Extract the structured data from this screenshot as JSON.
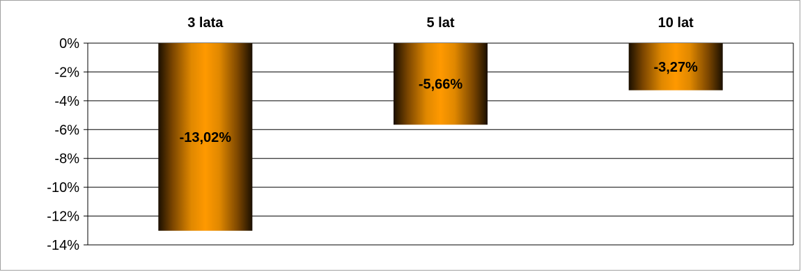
{
  "chart_data": {
    "type": "bar",
    "categories": [
      "3 lata",
      "5 lat",
      "10 lat"
    ],
    "values": [
      -13.02,
      -5.66,
      -3.27
    ],
    "data_labels": [
      "-13,02%",
      "-5,66%",
      "-3,27%"
    ],
    "ylim": [
      -14,
      0
    ],
    "y_ticks": [
      0,
      -2,
      -4,
      -6,
      -8,
      -10,
      -12,
      -14
    ],
    "y_tick_labels": [
      "0%",
      "-2%",
      "-4%",
      "-6%",
      "-8%",
      "-10%",
      "-12%",
      "-14%"
    ],
    "category_axis_position": "top",
    "grid": true,
    "legend": false,
    "colors": {
      "bar_center": "#ff9900",
      "bar_edge": "#1a0f00",
      "grid": "#000000",
      "frame": "#a0a0a0"
    }
  }
}
